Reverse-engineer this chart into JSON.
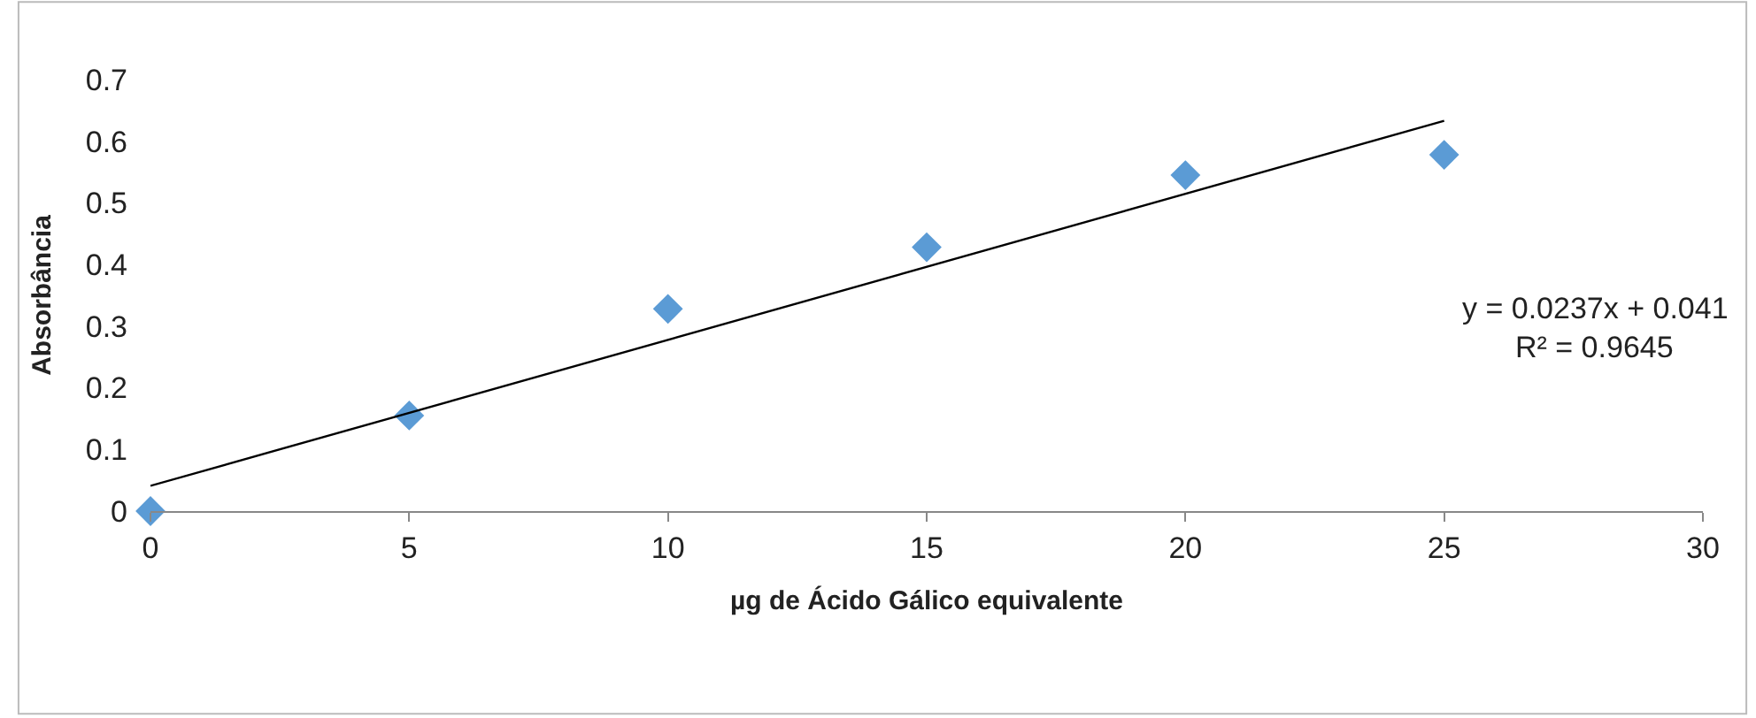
{
  "chart_data": {
    "type": "scatter",
    "xlabel": "µg de Ácido Gálico equivalente",
    "ylabel": "Absorbância",
    "x": [
      0,
      5,
      10,
      15,
      20,
      25
    ],
    "series": [
      {
        "color": "#5b9bd5",
        "values": [
          0,
          0.155,
          0.328,
          0.428,
          0.545,
          0.578
        ]
      },
      {
        "type": "line",
        "marker": "none",
        "color": "#000000",
        "x": [
          0,
          25
        ],
        "values": [
          0.041,
          0.633
        ]
      }
    ],
    "xlim": [
      0,
      30
    ],
    "xticks": [
      0,
      5,
      10,
      15,
      20,
      25,
      30
    ],
    "ylim": [
      0,
      0.7
    ],
    "yticks": [
      0,
      0.1,
      0.2,
      0.3,
      0.4,
      0.5,
      0.6,
      0.7
    ],
    "annotations": [
      "y = 0.0237x + 0.041",
      "R² = 0.9645"
    ],
    "marker": "diamond",
    "line_style": "solid",
    "legend": false
  }
}
